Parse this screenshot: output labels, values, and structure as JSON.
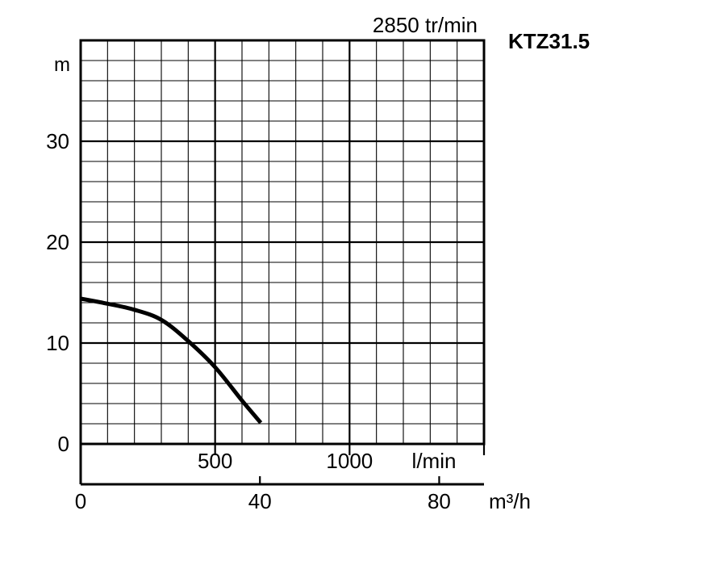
{
  "chart_data": {
    "type": "line",
    "title": "KTZ31.5",
    "subtitle": "2850 tr/min",
    "ylabel": "m",
    "xlabel_lmin": "l/min",
    "xlabel_m3h": "m³/h",
    "ylim": [
      0,
      40
    ],
    "xlim_lmin": [
      0,
      1500
    ],
    "xlim_m3h": [
      0,
      90
    ],
    "y_ticks": [
      {
        "value": 0,
        "label": "0"
      },
      {
        "value": 10,
        "label": "10"
      },
      {
        "value": 20,
        "label": "20"
      },
      {
        "value": 30,
        "label": "30"
      }
    ],
    "x_ticks_lmin": [
      {
        "value": 500,
        "label": "500"
      },
      {
        "value": 1000,
        "label": "1000"
      }
    ],
    "x_ticks_m3h": [
      {
        "value": 0,
        "label": "0"
      },
      {
        "value": 40,
        "label": "40"
      },
      {
        "value": 80,
        "label": "80"
      }
    ],
    "grid": true,
    "grid_minor_x_step_lmin": 100,
    "grid_minor_y_step": 2,
    "series": [
      {
        "x_lmin": [
          0,
          100,
          200,
          300,
          400,
          500,
          600,
          670
        ],
        "y": [
          14.4,
          13.9,
          13.3,
          12.3,
          10.2,
          7.6,
          4.3,
          2.1
        ]
      }
    ]
  }
}
